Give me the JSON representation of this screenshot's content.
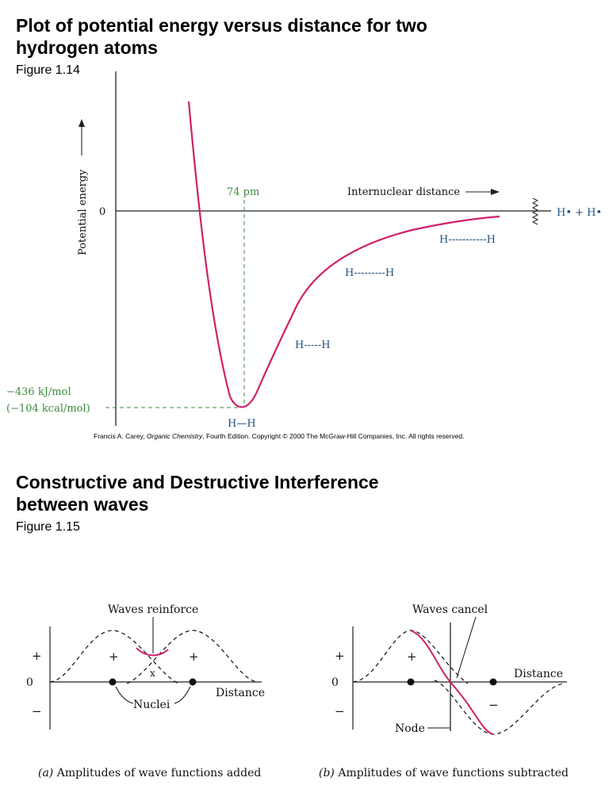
{
  "section1": {
    "title_line1": "Plot of potential energy versus distance for two",
    "title_line2": "hydrogen atoms",
    "figure_label": "Figure 1.14"
  },
  "plot1": {
    "ylabel": "Potential energy",
    "zero": "0",
    "pm_label": "74 pm",
    "xlabel": "Internuclear distance",
    "energy_label_1": "−436 kJ/mol",
    "energy_label_2": "(−104 kcal/mol)",
    "atoms_label": "H• + H•",
    "bond_labels": [
      "H—H",
      "H-----H",
      "H---------H",
      "H-----------H"
    ],
    "colors": {
      "curve": "#d0206a",
      "green": "#3c8a3c",
      "blue": "#1f4f7a"
    }
  },
  "credit": {
    "author": "Francis A. Carey, ",
    "book": "Organic Chemistry",
    "rest": ", Fourth Edition. Copyright © 2000 The McGraw-Hill Companies, Inc. All rights reserved."
  },
  "section2": {
    "title_line1": "Constructive and Destructive Interference",
    "title_line2": "between waves",
    "figure_label": "Figure 1.15"
  },
  "wave_a": {
    "header": "Waves reinforce",
    "plus_axis": "+",
    "zero": "0",
    "minus_axis": "−",
    "plus_left": "+",
    "plus_right": "+",
    "cross": "x",
    "nuclei": "Nuclei",
    "distance": "Distance",
    "caption_letter": "(a)",
    "caption_text": " Amplitudes of wave functions added"
  },
  "wave_b": {
    "header": "Waves cancel",
    "plus_axis": "+",
    "zero": "0",
    "minus_axis": "−",
    "plus_left": "+",
    "minus_right": "−",
    "node": "Node",
    "distance": "Distance",
    "caption_letter": "(b)",
    "caption_text": " Amplitudes of wave functions subtracted"
  }
}
